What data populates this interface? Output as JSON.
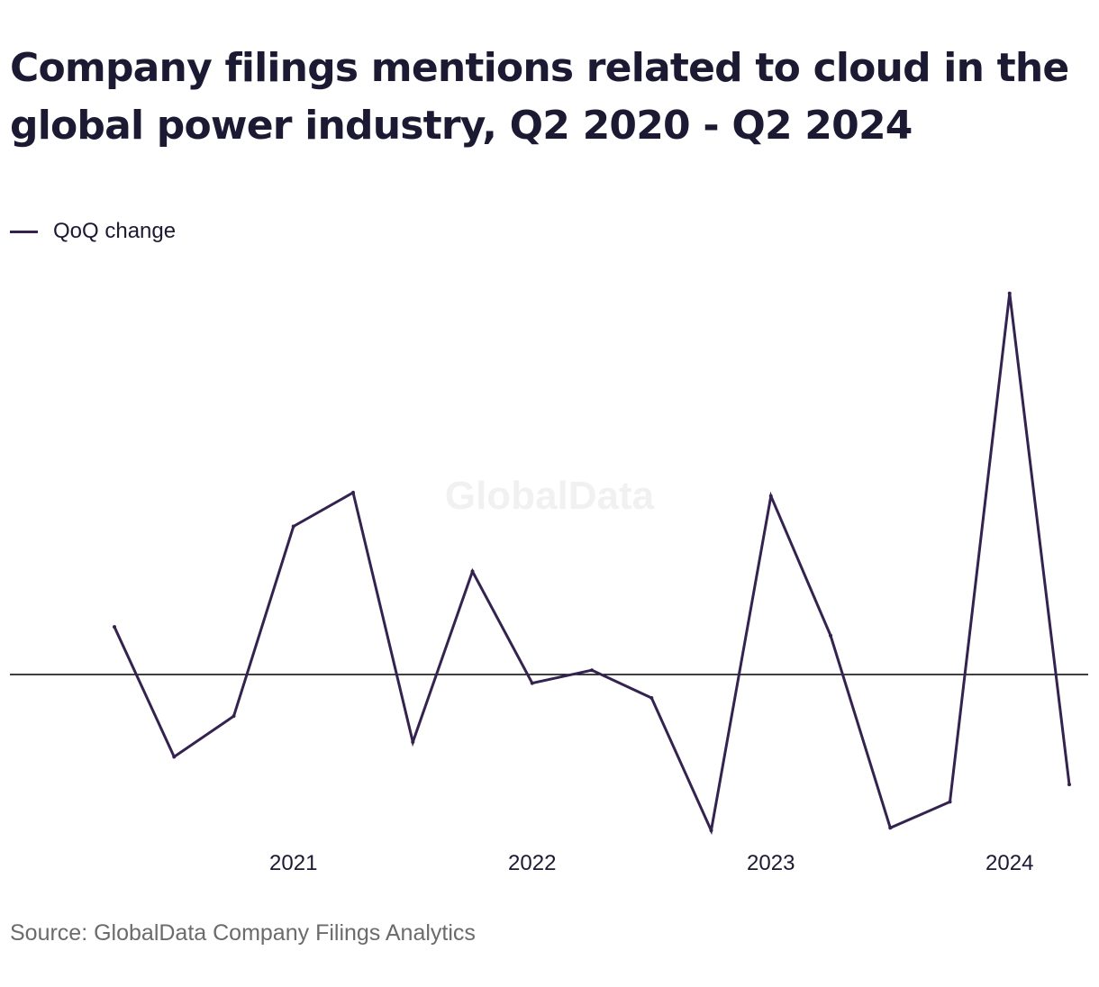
{
  "title": "Company filings mentions related to cloud in the global power industry, Q2 2020 - Q2 2024",
  "legend": {
    "label": "QoQ change"
  },
  "watermark": "GlobalData",
  "source": "Source: GlobalData Company Filings Analytics",
  "colors": {
    "series": "#34224f",
    "axis": "#000000",
    "text": "#1c1a33",
    "source": "#6b6b6b",
    "watermark": "#f1f1f1"
  },
  "chart_data": {
    "type": "line",
    "x": [
      "Q2 2020",
      "Q3 2020",
      "Q4 2020",
      "Q1 2021",
      "Q2 2021",
      "Q3 2021",
      "Q4 2021",
      "Q1 2022",
      "Q2 2022",
      "Q3 2022",
      "Q4 2022",
      "Q1 2023",
      "Q2 2023",
      "Q3 2023",
      "Q4 2023",
      "Q1 2024",
      "Q2 2024"
    ],
    "series": [
      {
        "name": "QoQ change",
        "values": [
          0.55,
          -0.95,
          -0.48,
          1.71,
          2.1,
          -0.78,
          1.19,
          -0.1,
          0.05,
          -0.27,
          -1.8,
          2.06,
          0.45,
          -1.77,
          -1.47,
          4.4,
          -1.27
        ]
      }
    ],
    "tick_labels": [
      "2021",
      "2022",
      "2023",
      "2024"
    ],
    "tick_positions": [
      "Q1 2021",
      "Q1 2022",
      "Q1 2023",
      "Q1 2024"
    ],
    "xlabel": "",
    "ylabel": "",
    "ylim": [
      -2.0,
      4.6
    ],
    "zero_line": true,
    "grid": false,
    "legend_position": "top-left"
  }
}
